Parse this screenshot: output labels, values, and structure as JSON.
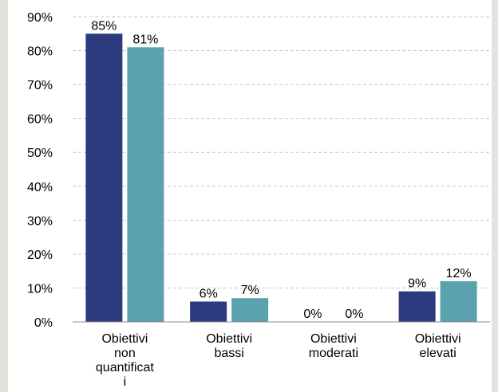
{
  "chart_data": {
    "type": "bar",
    "categories": [
      "Obiettivi non quantificati",
      "Obiettivi bassi",
      "Obiettivi moderati",
      "Obiettivi elevati"
    ],
    "category_lines": [
      [
        "Obiettivi",
        "non",
        "quantificat",
        "i"
      ],
      [
        "Obiettivi",
        "bassi"
      ],
      [
        "Obiettivi",
        "moderati"
      ],
      [
        "Obiettivi",
        "elevati"
      ]
    ],
    "series": [
      {
        "values": [
          85,
          6,
          0,
          9
        ],
        "color": "#2e3a7e",
        "data_labels": [
          "85%",
          "6%",
          "0%",
          "9%"
        ]
      },
      {
        "values": [
          81,
          7,
          0,
          12
        ],
        "color": "#5aa2ad",
        "data_labels": [
          "81%",
          "7%",
          "0%",
          "12%"
        ]
      }
    ],
    "y_ticks": [
      "0%",
      "10%",
      "20%",
      "30%",
      "40%",
      "50%",
      "60%",
      "70%",
      "80%",
      "90%"
    ],
    "ylim": [
      0,
      90
    ],
    "y_unit": "%",
    "grid": true,
    "legend": "none",
    "title": "",
    "xlabel": "",
    "ylabel": ""
  }
}
